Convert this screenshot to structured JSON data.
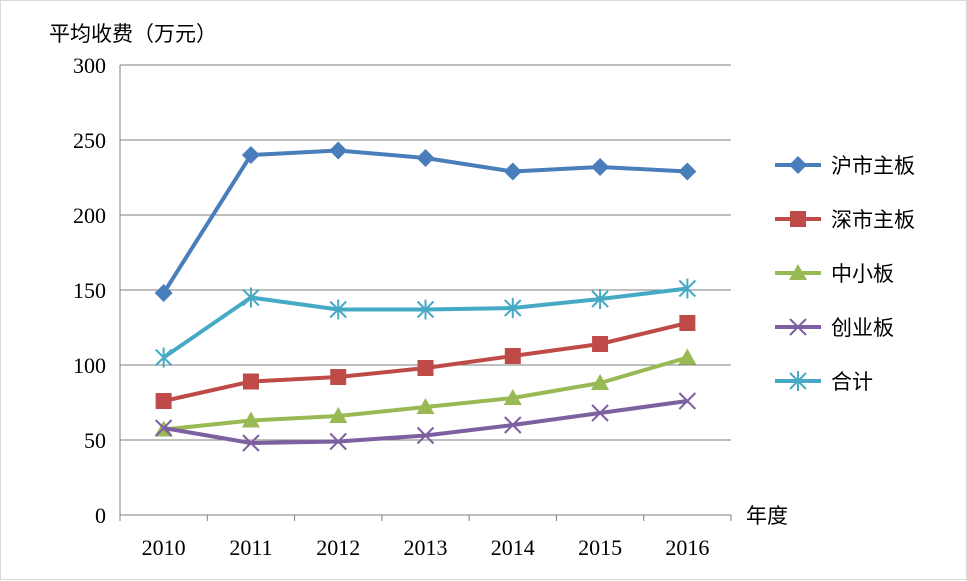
{
  "chart_data": {
    "type": "line",
    "ylabel": "平均收费（万元）",
    "xlabel": "年度",
    "ylim": [
      0,
      300
    ],
    "yticks": [
      0,
      50,
      100,
      150,
      200,
      250,
      300
    ],
    "categories": [
      "2010",
      "2011",
      "2012",
      "2013",
      "2014",
      "2015",
      "2016"
    ],
    "grid": "horizontal",
    "legend_position": "right",
    "series": [
      {
        "name": "沪市主板",
        "color": "#4a7ebb",
        "marker": "diamond",
        "values": [
          148,
          240,
          243,
          238,
          229,
          232,
          229
        ]
      },
      {
        "name": "深市主板",
        "color": "#be4b48",
        "marker": "square",
        "values": [
          76,
          89,
          92,
          98,
          106,
          114,
          128
        ]
      },
      {
        "name": "中小板",
        "color": "#98b954",
        "marker": "triangle",
        "values": [
          57,
          63,
          66,
          72,
          78,
          88,
          105
        ]
      },
      {
        "name": "创业板",
        "color": "#7d60a0",
        "marker": "x",
        "values": [
          58,
          48,
          49,
          53,
          60,
          68,
          76
        ]
      },
      {
        "name": "合计",
        "color": "#46aac5",
        "marker": "star",
        "values": [
          105,
          145,
          137,
          137,
          138,
          144,
          151
        ]
      }
    ]
  }
}
